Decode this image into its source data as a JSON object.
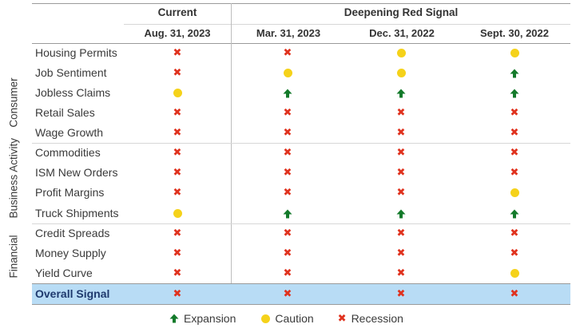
{
  "colors": {
    "recession": "#e0321e",
    "caution": "#f5d21a",
    "expansion": "#137a2a",
    "overall_bg": "#b8dcf5"
  },
  "header": {
    "group_current": "Current",
    "group_deepening": "Deepening Red Signal",
    "dates": [
      "Aug. 31, 2023",
      "Mar. 31, 2023",
      "Dec. 31, 2022",
      "Sept. 30, 2022"
    ]
  },
  "sections": {
    "consumer": "Consumer",
    "business": "Business Activity",
    "financial": "Financial"
  },
  "rows": [
    {
      "label": "Housing Permits",
      "signals": [
        "recession",
        "recession",
        "caution",
        "caution"
      ]
    },
    {
      "label": "Job Sentiment",
      "signals": [
        "recession",
        "caution",
        "caution",
        "expansion"
      ]
    },
    {
      "label": "Jobless Claims",
      "signals": [
        "caution",
        "expansion",
        "expansion",
        "expansion"
      ]
    },
    {
      "label": "Retail Sales",
      "signals": [
        "recession",
        "recession",
        "recession",
        "recession"
      ]
    },
    {
      "label": "Wage Growth",
      "signals": [
        "recession",
        "recession",
        "recession",
        "recession"
      ]
    },
    {
      "label": "Commodities",
      "signals": [
        "recession",
        "recession",
        "recession",
        "recession"
      ]
    },
    {
      "label": "ISM New Orders",
      "signals": [
        "recession",
        "recession",
        "recession",
        "recession"
      ]
    },
    {
      "label": "Profit Margins",
      "signals": [
        "recession",
        "recession",
        "recession",
        "caution"
      ]
    },
    {
      "label": "Truck Shipments",
      "signals": [
        "caution",
        "expansion",
        "expansion",
        "expansion"
      ]
    },
    {
      "label": "Credit Spreads",
      "signals": [
        "recession",
        "recession",
        "recession",
        "recession"
      ]
    },
    {
      "label": "Money Supply",
      "signals": [
        "recession",
        "recession",
        "recession",
        "recession"
      ]
    },
    {
      "label": "Yield Curve",
      "signals": [
        "recession",
        "recession",
        "recession",
        "caution"
      ]
    },
    {
      "label": "Overall Signal",
      "signals": [
        "recession",
        "recession",
        "recession",
        "recession"
      ]
    }
  ],
  "legend": {
    "expansion": "Expansion",
    "caution": "Caution",
    "recession": "Recession"
  }
}
